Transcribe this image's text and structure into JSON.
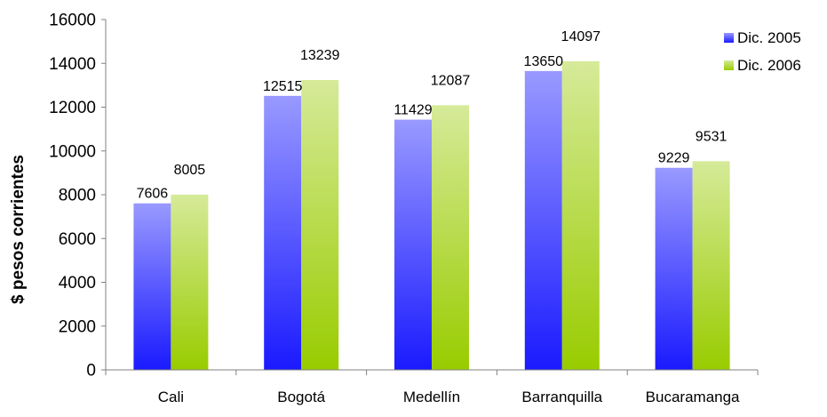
{
  "chart_data": {
    "type": "bar",
    "title": "",
    "xlabel": "",
    "ylabel": "$ pesos corrientes",
    "categories": [
      "Cali",
      "Bogotá",
      "Medellín",
      "Barranquilla",
      "Bucaramanga"
    ],
    "series": [
      {
        "name": "Dic. 2005",
        "values": [
          7606,
          12515,
          11429,
          13650,
          9229
        ],
        "labels": [
          "7606",
          "12515",
          "11429",
          "13650",
          "9229"
        ],
        "color_top": "#9999ff",
        "color_bottom": "#1a1aff"
      },
      {
        "name": "Dic. 2006",
        "values": [
          8005,
          13239,
          12087,
          14097,
          9531
        ],
        "labels": [
          "8005",
          "13239",
          "12087",
          "14097",
          "9531"
        ],
        "color_top": "#d6ea99",
        "color_bottom": "#99cc00"
      }
    ],
    "ylim": [
      0,
      16000
    ],
    "yticks": [
      0,
      2000,
      4000,
      6000,
      8000,
      10000,
      12000,
      14000,
      16000
    ],
    "ytick_labels": [
      "0",
      "2000",
      "4000",
      "6000",
      "8000",
      "10000",
      "12000",
      "14000",
      "16000"
    ],
    "grid": false,
    "legend_position": "top-right"
  }
}
